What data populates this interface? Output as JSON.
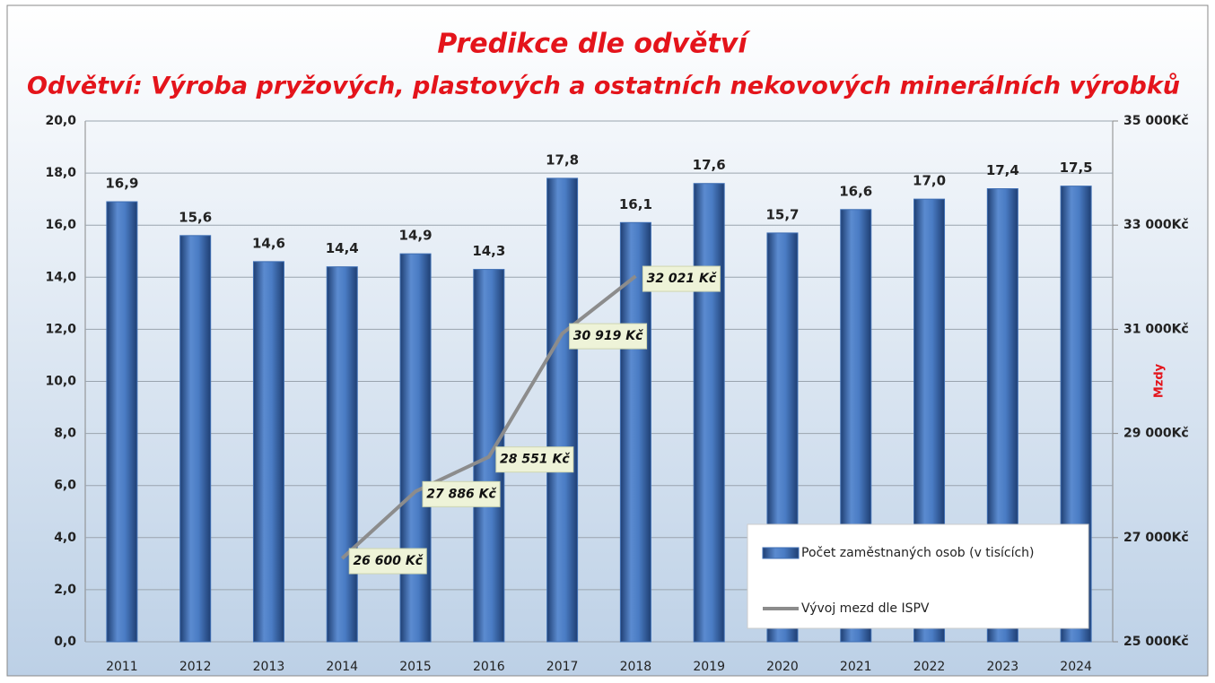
{
  "chart_data": {
    "type": "bar",
    "title": "Predikce dle odvětví",
    "subtitle": "Odvětví: Výroba pryžových, plastových a ostatních nekovových minerálních výrobků",
    "y2_label": "Mzdy",
    "categories": [
      "2011",
      "2012",
      "2013",
      "2014",
      "2015",
      "2016",
      "2017",
      "2018",
      "2019",
      "2020",
      "2021",
      "2022",
      "2023",
      "2024"
    ],
    "series": [
      {
        "name": "Počet zaměstnaných osob (v tisících)",
        "type": "bar",
        "color": "#3f6fb4",
        "values": [
          16.9,
          15.6,
          14.6,
          14.4,
          14.9,
          14.3,
          17.8,
          16.1,
          17.6,
          15.7,
          16.6,
          17.0,
          17.4,
          17.5
        ],
        "value_labels": [
          "16,9",
          "15,6",
          "14,6",
          "14,4",
          "14,9",
          "14,3",
          "17,8",
          "16,1",
          "17,6",
          "15,7",
          "16,6",
          "17,0",
          "17,4",
          "17,5"
        ]
      },
      {
        "name": "Vývoj mezd dle ISPV",
        "type": "line",
        "axis": "y2",
        "color": "#8c8c8c",
        "values": [
          null,
          null,
          null,
          26600,
          27886,
          28551,
          30919,
          32021,
          null,
          null,
          null,
          null,
          null,
          null
        ],
        "value_labels": [
          null,
          null,
          null,
          "26 600 Kč",
          "27 886 Kč",
          "28 551 Kč",
          "30 919 Kč",
          "32 021 Kč",
          null,
          null,
          null,
          null,
          null,
          null
        ]
      }
    ],
    "ylim": [
      0,
      20
    ],
    "yticks": [
      {
        "value": 0,
        "label": "0,0"
      },
      {
        "value": 2,
        "label": "2,0"
      },
      {
        "value": 4,
        "label": "4,0"
      },
      {
        "value": 6,
        "label": "6,0"
      },
      {
        "value": 8,
        "label": "8,0"
      },
      {
        "value": 10,
        "label": "10,0"
      },
      {
        "value": 12,
        "label": "12,0"
      },
      {
        "value": 14,
        "label": "14,0"
      },
      {
        "value": 16,
        "label": "16,0"
      },
      {
        "value": 18,
        "label": "18,0"
      },
      {
        "value": 20,
        "label": "20,0"
      }
    ],
    "y2lim": [
      25000,
      35000
    ],
    "y2ticks": [
      {
        "value": 25000,
        "label": "25 000Kč"
      },
      {
        "value": 27000,
        "label": "27 000Kč"
      },
      {
        "value": 29000,
        "label": "29 000Kč"
      },
      {
        "value": 31000,
        "label": "31 000Kč"
      },
      {
        "value": 33000,
        "label": "33 000Kč"
      },
      {
        "value": 35000,
        "label": "35 000Kč"
      }
    ],
    "grid": true,
    "legend": "bottom-right"
  }
}
